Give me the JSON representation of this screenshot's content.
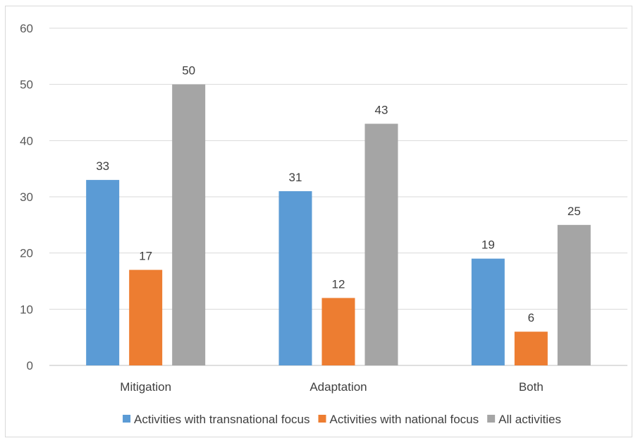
{
  "chart_data": {
    "type": "bar",
    "categories": [
      "Mitigation",
      "Adaptation",
      "Both"
    ],
    "series": [
      {
        "name": "Activities with transnational focus",
        "values": [
          33,
          31,
          19
        ],
        "color": "#5b9bd5"
      },
      {
        "name": "Activities with national focus",
        "values": [
          17,
          12,
          6
        ],
        "color": "#ed7d31"
      },
      {
        "name": "All activities",
        "values": [
          50,
          43,
          25
        ],
        "color": "#a5a5a5"
      }
    ],
    "title": "",
    "xlabel": "",
    "ylabel": "",
    "ylim": [
      0,
      60
    ],
    "yticks": [
      0,
      10,
      20,
      30,
      40,
      50,
      60
    ],
    "grid": true,
    "legend_position": "bottom",
    "data_labels": true
  }
}
